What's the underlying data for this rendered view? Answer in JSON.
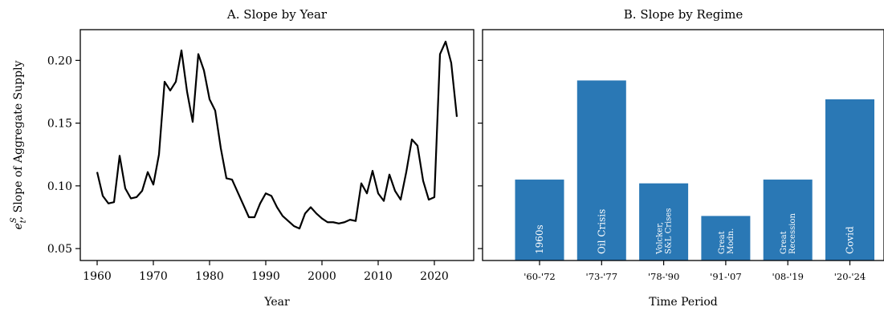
{
  "chart_data": [
    {
      "type": "line",
      "title": "A. Slope by Year",
      "xlabel": "Year",
      "ylabel": "e_t^S, Slope of Aggregate Supply",
      "ylabel_prefix": "e",
      "ylabel_sub": "t",
      "ylabel_sup": "S",
      "ylabel_rest": ", Slope of Aggregate Supply",
      "xlim": [
        1957,
        2027
      ],
      "ylim": [
        0.0405,
        0.2245
      ],
      "xticks": [
        1960,
        1970,
        1980,
        1990,
        2000,
        2010,
        2020
      ],
      "yticks": [
        0.05,
        0.1,
        0.15,
        0.2
      ],
      "ytick_labels": [
        "0.05",
        "0.10",
        "0.15",
        "0.20"
      ],
      "color": "#000000",
      "x": [
        1960,
        1961,
        1962,
        1963,
        1964,
        1965,
        1966,
        1967,
        1968,
        1969,
        1970,
        1971,
        1972,
        1973,
        1974,
        1975,
        1976,
        1977,
        1978,
        1979,
        1980,
        1981,
        1982,
        1983,
        1984,
        1985,
        1986,
        1987,
        1988,
        1989,
        1990,
        1991,
        1992,
        1993,
        1994,
        1995,
        1996,
        1997,
        1998,
        1999,
        2000,
        2001,
        2002,
        2003,
        2004,
        2005,
        2006,
        2007,
        2008,
        2009,
        2010,
        2011,
        2012,
        2013,
        2014,
        2015,
        2016,
        2017,
        2018,
        2019,
        2020,
        2021,
        2022,
        2023,
        2024
      ],
      "y": [
        0.111,
        0.092,
        0.086,
        0.087,
        0.124,
        0.098,
        0.09,
        0.091,
        0.096,
        0.111,
        0.101,
        0.125,
        0.183,
        0.176,
        0.183,
        0.208,
        0.175,
        0.151,
        0.205,
        0.192,
        0.169,
        0.16,
        0.13,
        0.106,
        0.105,
        0.095,
        0.085,
        0.075,
        0.075,
        0.086,
        0.094,
        0.092,
        0.083,
        0.076,
        0.072,
        0.068,
        0.066,
        0.078,
        0.083,
        0.078,
        0.074,
        0.071,
        0.071,
        0.07,
        0.071,
        0.073,
        0.072,
        0.102,
        0.094,
        0.112,
        0.094,
        0.088,
        0.109,
        0.096,
        0.089,
        0.111,
        0.137,
        0.132,
        0.104,
        0.089,
        0.091,
        0.205,
        0.215,
        0.198,
        0.155
      ]
    },
    {
      "type": "bar",
      "title": "B. Slope by Regime",
      "xlabel": "Time Period",
      "ylim": [
        0.0405,
        0.2245
      ],
      "yticks": [
        0.05,
        0.1,
        0.15,
        0.2
      ],
      "color": "#2a78b5",
      "categories": [
        "'60-'72",
        "'73-'77",
        "'78-'90",
        "'91-'07",
        "'08-'19",
        "'20-'24"
      ],
      "bar_labels": [
        [
          "1960s"
        ],
        [
          "Oil Crisis"
        ],
        [
          "Volcker,",
          "S&L Crises"
        ],
        [
          "Great",
          "Modn."
        ],
        [
          "Great",
          "Recession"
        ],
        [
          "Covid"
        ]
      ],
      "values": [
        0.105,
        0.184,
        0.102,
        0.076,
        0.105,
        0.169
      ]
    }
  ]
}
